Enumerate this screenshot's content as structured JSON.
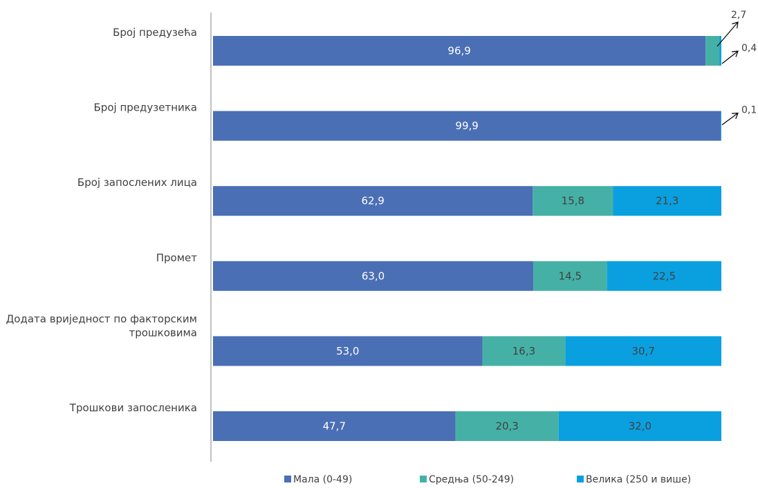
{
  "chart_data": {
    "type": "bar",
    "orientation": "horizontal",
    "stacked": true,
    "title": "",
    "xlabel": "",
    "ylabel": "",
    "xlim": [
      0,
      100
    ],
    "grid": false,
    "legend_position": "bottom",
    "categories": [
      "Број предузећа",
      "Број предузетника",
      "Број запослених лица",
      "Промет",
      "Додата вриједност по факторским трошковима",
      "Трошкови запосленика"
    ],
    "category_lines": [
      [
        "Број предузећа"
      ],
      [
        "Број предузетника"
      ],
      [
        "Број запослених лица"
      ],
      [
        "Промет"
      ],
      [
        "Додата вриједност по факторским",
        "трошковима"
      ],
      [
        "Трошкови запосленика"
      ]
    ],
    "series": [
      {
        "name": "Мала (0-49)",
        "color": "#4a6fb5",
        "label_color": "#ffffff",
        "values": [
          96.9,
          99.9,
          62.9,
          63.0,
          53.0,
          47.7
        ],
        "labels": [
          "96,9",
          "99,9",
          "62,9",
          "63,0",
          "53,0",
          "47,7"
        ]
      },
      {
        "name": "Средња (50-249)",
        "color": "#45b1a6",
        "label_color": "#404040",
        "values": [
          2.7,
          0.0,
          15.8,
          14.5,
          16.3,
          20.3
        ],
        "labels": [
          "2,7",
          "",
          "15,8",
          "14,5",
          "16,3",
          "20,3"
        ]
      },
      {
        "name": "Велика (250 и више)",
        "color": "#0aa0e0",
        "label_color": "#404040",
        "values": [
          0.4,
          0.1,
          21.3,
          22.5,
          30.7,
          32.0
        ],
        "labels": [
          "0,4",
          "0,1",
          "21,3",
          "22,5",
          "30,7",
          "32,0"
        ]
      }
    ],
    "callouts": [
      {
        "category_index": 0,
        "series_index": 1,
        "text": "2,7"
      },
      {
        "category_index": 0,
        "series_index": 2,
        "text": "0,4"
      },
      {
        "category_index": 1,
        "series_index": 2,
        "text": "0,1"
      }
    ]
  }
}
